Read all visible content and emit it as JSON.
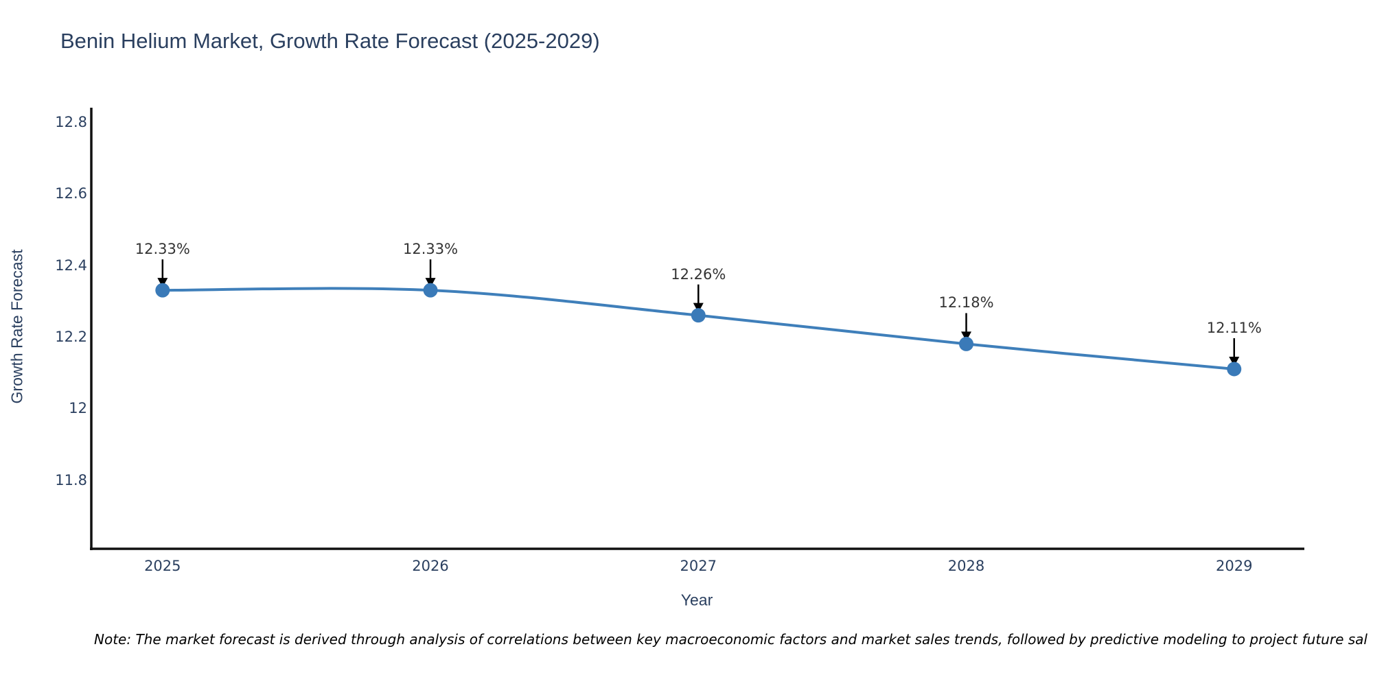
{
  "note": {
    "text": "Note: The market forecast is derived through analysis of correlations between key macroeconomic factors and market sales trends, followed by predictive modeling to project future sal"
  },
  "colors": {
    "title": "#2a3f5f",
    "tick_label": "#2a3f5f",
    "annotation": "#333333",
    "line": "#3f7fba",
    "marker": "#3a7ab8",
    "axis": "#111111",
    "arrow": "#000000"
  },
  "chart_data": {
    "type": "line",
    "title": "Benin Helium Market, Growth Rate Forecast (2025-2029)",
    "xlabel": "Year",
    "ylabel": "Growth Rate Forecast",
    "x": [
      2025,
      2026,
      2027,
      2028,
      2029
    ],
    "series": [
      {
        "name": "Growth Rate Forecast",
        "values": [
          12.33,
          12.33,
          12.26,
          12.18,
          12.11
        ]
      }
    ],
    "point_labels": [
      "12.33%",
      "12.33%",
      "12.26%",
      "12.18%",
      "12.11%"
    ],
    "xticks": [
      "2025",
      "2026",
      "2027",
      "2028",
      "2029"
    ],
    "yticks": [
      "12.8",
      "12.6",
      "12.4",
      "12.2",
      "12",
      "11.8"
    ],
    "ytick_values": [
      12.8,
      12.6,
      12.4,
      12.2,
      12.0,
      11.8
    ],
    "xlim": [
      2024.734,
      2029.262
    ],
    "ylim": [
      11.608,
      12.836
    ],
    "grid": false,
    "legend": "none",
    "line_shape": "spline",
    "annotations": "value labels with down arrows above each point"
  }
}
